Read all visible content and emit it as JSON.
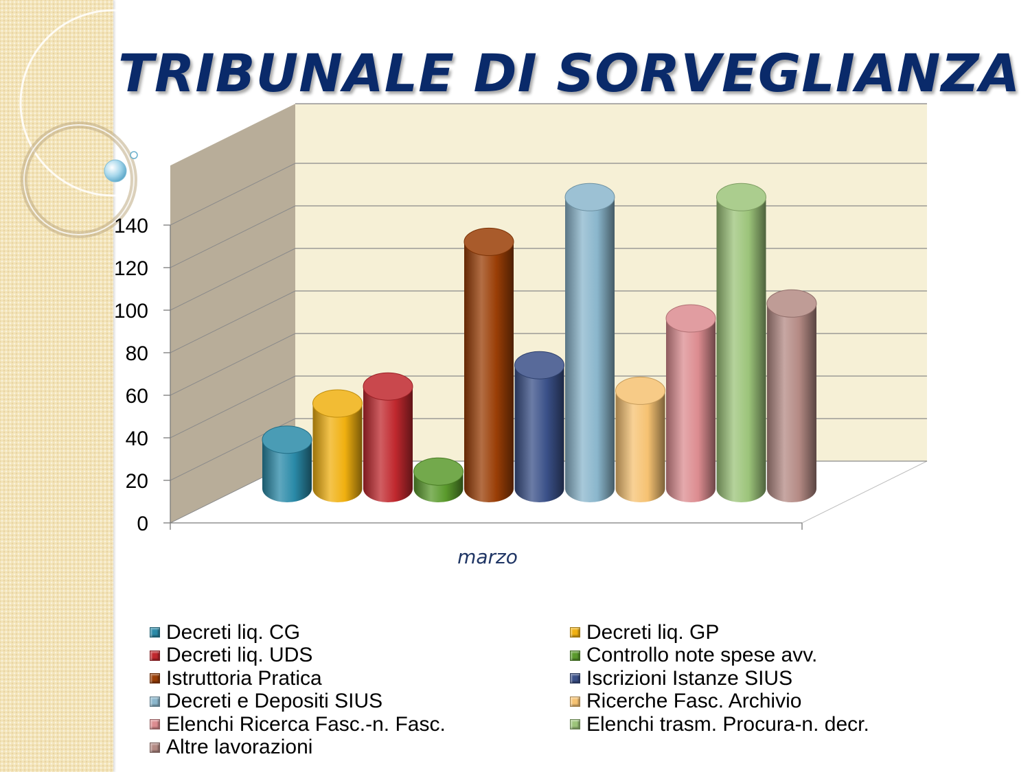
{
  "slide": {
    "title": "TRIBUNALE DI SORVEGLIANZA"
  },
  "chart_data": {
    "type": "bar",
    "style": "3d-cylinder",
    "categories": [
      "marzo"
    ],
    "ylim": [
      0,
      140
    ],
    "yticks": [
      0,
      20,
      40,
      60,
      80,
      100,
      120,
      140
    ],
    "grid": true,
    "legend_position": "bottom",
    "series": [
      {
        "name": "Decreti liq. CG",
        "values": [
          23
        ],
        "color": "#2a8aa8"
      },
      {
        "name": "Decreti liq. GP",
        "values": [
          40
        ],
        "color": "#f0b010"
      },
      {
        "name": "Decreti liq. UDS",
        "values": [
          48
        ],
        "color": "#c0282e"
      },
      {
        "name": "Controllo note spese avv.",
        "values": [
          8
        ],
        "color": "#5a9a2c"
      },
      {
        "name": "Istruttoria Pratica",
        "values": [
          116
        ],
        "color": "#9a3e06"
      },
      {
        "name": "Iscrizioni Istanze SIUS",
        "values": [
          58
        ],
        "color": "#3a5088"
      },
      {
        "name": "Decreti e Depositi SIUS",
        "values": [
          137
        ],
        "color": "#8ab6cc"
      },
      {
        "name": "Ricerche Fasc. Archivio",
        "values": [
          46
        ],
        "color": "#f6c272"
      },
      {
        "name": "Elenchi Ricerca Fasc.-n. Fasc.",
        "values": [
          80
        ],
        "color": "#dc8c90"
      },
      {
        "name": "Elenchi trasm. Procura-n. decr.",
        "values": [
          137
        ],
        "color": "#9cc47a"
      },
      {
        "name": "Altre lavorazioni",
        "values": [
          87
        ],
        "color": "#b48a84"
      }
    ]
  }
}
